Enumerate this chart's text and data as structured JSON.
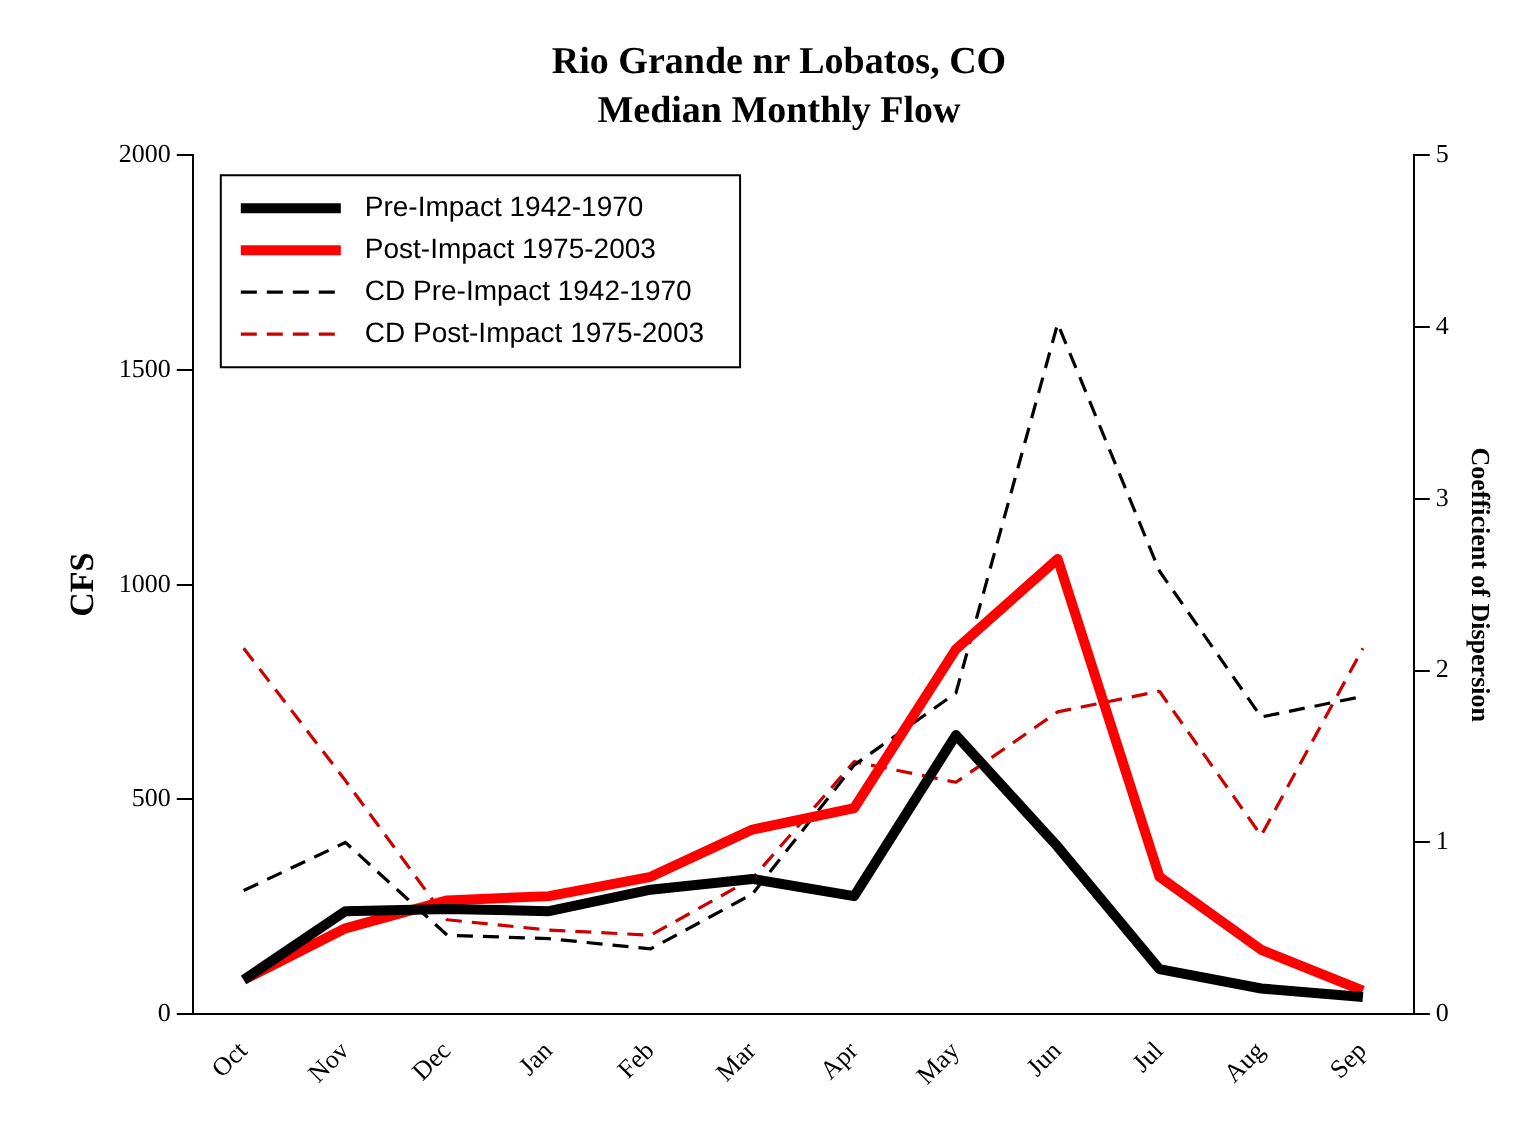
{
  "chart_data": {
    "type": "line",
    "title": "Rio Grande nr Lobatos, CO",
    "subtitle": "Median Monthly Flow",
    "ylabel": "CFS",
    "y2label": "Coefficient of Dispersion",
    "categories": [
      "Oct",
      "Nov",
      "Dec",
      "Jan",
      "Feb",
      "Mar",
      "Apr",
      "May",
      "Jun",
      "Jul",
      "Aug",
      "Sep"
    ],
    "series": [
      {
        "name": "Pre-Impact 1942-1970",
        "color": "#000000",
        "line_style": "solid",
        "values": [
          80,
          240,
          245,
          240,
          290,
          315,
          275,
          650,
          390,
          105,
          60,
          40
        ]
      },
      {
        "name": "Post-Impact 1975-2003",
        "color": "#ff0000",
        "line_style": "solid",
        "values": [
          80,
          200,
          265,
          275,
          320,
          430,
          480,
          850,
          1060,
          320,
          150,
          55
        ]
      },
      {
        "name": "CD Pre-Impact 1942-1970",
        "color": "#000000",
        "line_style": "dashed",
        "axis": "y2",
        "values": [
          0.72,
          1.0,
          0.46,
          0.44,
          0.38,
          0.7,
          1.45,
          1.87,
          4.02,
          2.58,
          1.73,
          1.85
        ]
      },
      {
        "name": "CD Post-Impact 1975-2003",
        "color": "#cc0000",
        "line_style": "dashed",
        "axis": "y2",
        "values": [
          2.13,
          1.36,
          0.55,
          0.49,
          0.46,
          0.79,
          1.47,
          1.35,
          1.76,
          1.88,
          1.04,
          2.13
        ]
      }
    ],
    "ylim": [
      0,
      2000
    ],
    "yticks": [
      0,
      500,
      1000,
      1500,
      2000
    ],
    "y2lim": [
      0,
      5
    ],
    "y2ticks": [
      0,
      1,
      2,
      3,
      4,
      5
    ],
    "grid": false,
    "legend": "top left",
    "marker": "none"
  }
}
